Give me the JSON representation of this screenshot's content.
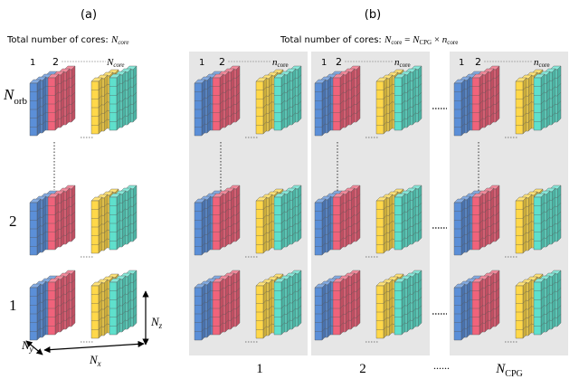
{
  "panel_a": {
    "label": "(a)",
    "caption_prefix": "Total number of cores: ",
    "caption_var": "N",
    "caption_sub": "core",
    "index_first": "1",
    "index_second": "2",
    "index_last_var": "N",
    "index_last_sub": "core",
    "row_labels": {
      "top_var": "N",
      "top_sub": "orb",
      "middle": "2",
      "bottom": "1"
    },
    "axes": {
      "z_var": "N",
      "z_sub": "z",
      "y_var": "N",
      "y_sub": "y",
      "x_var": "N",
      "x_sub": "x"
    }
  },
  "panel_b": {
    "label": "(b)",
    "caption_prefix": "Total number of cores: ",
    "caption_lhs_var": "N",
    "caption_lhs_sub": "core",
    "caption_eq": " = ",
    "caption_rhs1_var": "N",
    "caption_rhs1_sub": "CPG",
    "caption_times": " × ",
    "caption_rhs2_var": "n",
    "caption_rhs2_sub": "core",
    "index_first": "1",
    "index_second": "2",
    "index_last_var": "n",
    "index_last_sub": "core",
    "group_labels": {
      "first": "1",
      "second": "2",
      "ellipsis": "......",
      "last_var": "N",
      "last_sub": "CPG"
    }
  },
  "colors": {
    "blue": "#5b8fd8",
    "red": "#f0637b",
    "yellow": "#ffd84a",
    "teal": "#5fe0cc",
    "panel_bg": "#e6e6e6"
  }
}
